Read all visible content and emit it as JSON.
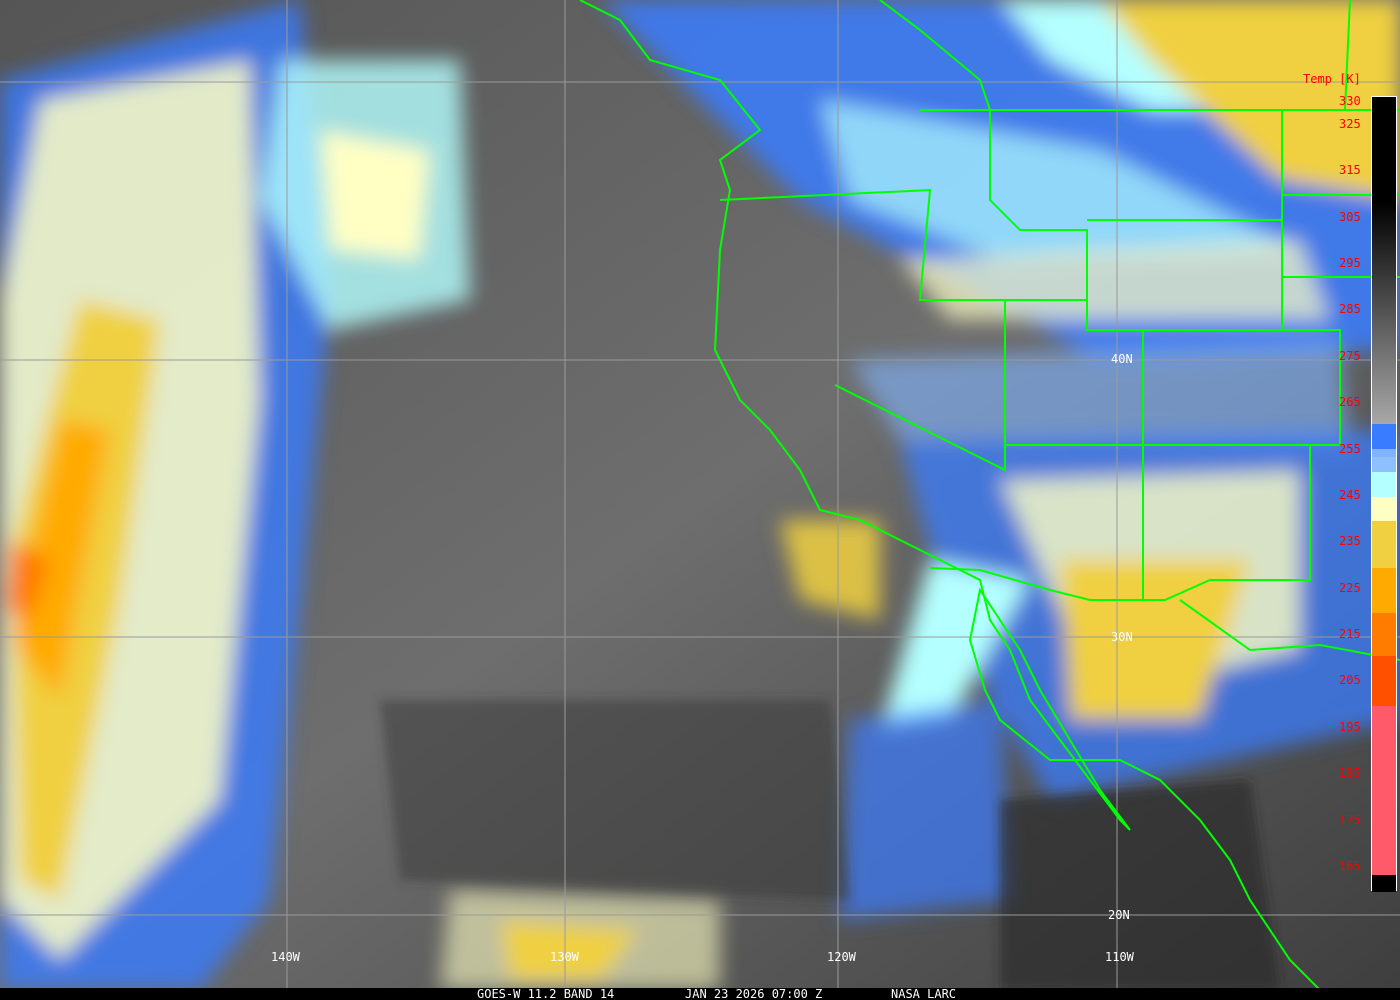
{
  "caption": {
    "satellite": "GOES-W 11.2 BAND 14",
    "datetime": "JAN 23 2026 07:00 Z",
    "source": "NASA LARC"
  },
  "legend": {
    "title": "Temp [K]",
    "ticks": [
      "330",
      "325",
      "315",
      "305",
      "295",
      "285",
      "275",
      "265",
      "255",
      "245",
      "235",
      "225",
      "215",
      "205",
      "195",
      "185",
      "175",
      "165"
    ],
    "colors": {
      "warm_top": "#000000",
      "gray_low": "#a8a8a8",
      "blue": "#3a7cff",
      "light_blue": "#80b4ff",
      "cyan": "#b4ffff",
      "pale_yellow": "#ffffc4",
      "yellow": "#f0d040",
      "amber": "#ffaa00",
      "orange": "#ff7c00",
      "red_orange": "#ff5000",
      "pink": "#ff5a6a",
      "cold_end": "#000000"
    }
  },
  "grid_labels": {
    "lon": [
      "140W",
      "130W",
      "120W",
      "110W"
    ],
    "lat": [
      "40N",
      "30N",
      "20N"
    ]
  },
  "overlay_color": "#00ff00"
}
